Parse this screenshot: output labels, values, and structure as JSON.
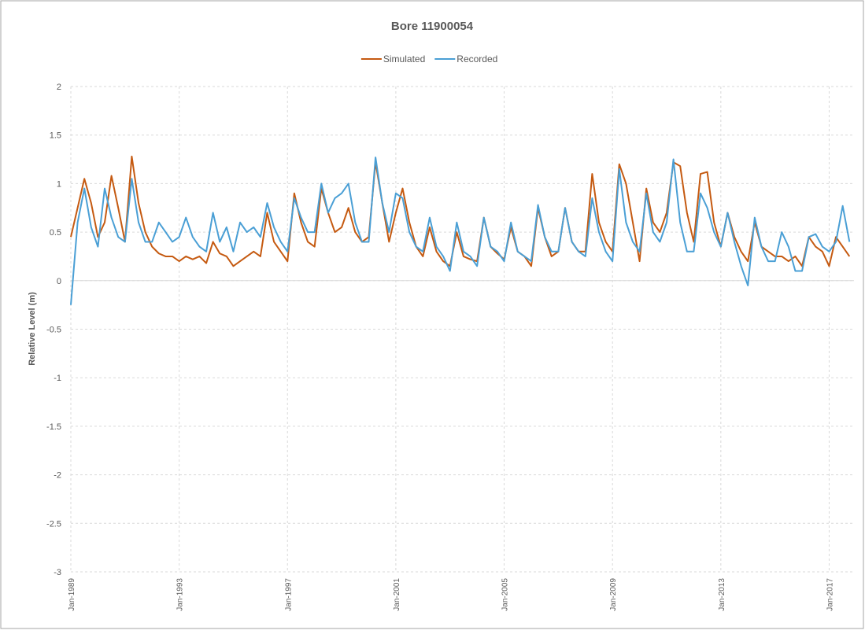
{
  "chart_data": {
    "type": "line",
    "title": "Bore 11900054",
    "y_label": "Relative Level (m)",
    "x": [
      "1989-01",
      "1989-04",
      "1989-07",
      "1989-10",
      "1990-01",
      "1990-04",
      "1990-07",
      "1990-10",
      "1991-01",
      "1991-04",
      "1991-07",
      "1991-10",
      "1992-01",
      "1992-04",
      "1992-07",
      "1992-10",
      "1993-01",
      "1993-04",
      "1993-07",
      "1993-10",
      "1994-01",
      "1994-04",
      "1994-07",
      "1994-10",
      "1995-01",
      "1995-04",
      "1995-07",
      "1995-10",
      "1996-01",
      "1996-04",
      "1996-07",
      "1996-10",
      "1997-01",
      "1997-04",
      "1997-07",
      "1997-10",
      "1998-01",
      "1998-04",
      "1998-07",
      "1998-10",
      "1999-01",
      "1999-04",
      "1999-07",
      "1999-10",
      "2000-01",
      "2000-04",
      "2000-07",
      "2000-10",
      "2001-01",
      "2001-04",
      "2001-07",
      "2001-10",
      "2002-01",
      "2002-04",
      "2002-07",
      "2002-10",
      "2003-01",
      "2003-04",
      "2003-07",
      "2003-10",
      "2004-01",
      "2004-04",
      "2004-07",
      "2004-10",
      "2005-01",
      "2005-04",
      "2005-07",
      "2005-10",
      "2006-01",
      "2006-04",
      "2006-07",
      "2006-10",
      "2007-01",
      "2007-04",
      "2007-07",
      "2007-10",
      "2008-01",
      "2008-04",
      "2008-07",
      "2008-10",
      "2009-01",
      "2009-04",
      "2009-07",
      "2009-10",
      "2010-01",
      "2010-04",
      "2010-07",
      "2010-10",
      "2011-01",
      "2011-04",
      "2011-07",
      "2011-10",
      "2012-01",
      "2012-04",
      "2012-07",
      "2012-10",
      "2013-01",
      "2013-04",
      "2013-07",
      "2013-10",
      "2014-01",
      "2014-04",
      "2014-07",
      "2014-10",
      "2015-01",
      "2015-04",
      "2015-07",
      "2015-10",
      "2016-01",
      "2016-04",
      "2016-07",
      "2016-10",
      "2017-01",
      "2017-04",
      "2017-07",
      "2017-10"
    ],
    "series": [
      {
        "name": "Simulated",
        "color": "#c55a11",
        "values": [
          0.45,
          0.75,
          1.05,
          0.8,
          0.45,
          0.6,
          1.08,
          0.75,
          0.4,
          1.28,
          0.8,
          0.5,
          0.35,
          0.28,
          0.25,
          0.25,
          0.2,
          0.25,
          0.22,
          0.25,
          0.18,
          0.4,
          0.28,
          0.25,
          0.15,
          0.2,
          0.25,
          0.3,
          0.25,
          0.7,
          0.4,
          0.3,
          0.2,
          0.9,
          0.6,
          0.4,
          0.35,
          0.95,
          0.7,
          0.5,
          0.55,
          0.75,
          0.5,
          0.4,
          0.45,
          1.22,
          0.8,
          0.4,
          0.7,
          0.95,
          0.6,
          0.35,
          0.25,
          0.55,
          0.3,
          0.2,
          0.15,
          0.5,
          0.25,
          0.22,
          0.2,
          0.65,
          0.35,
          0.28,
          0.22,
          0.55,
          0.3,
          0.25,
          0.15,
          0.75,
          0.45,
          0.25,
          0.3,
          0.75,
          0.4,
          0.3,
          0.3,
          1.1,
          0.6,
          0.4,
          0.3,
          1.2,
          1.0,
          0.6,
          0.2,
          0.95,
          0.6,
          0.5,
          0.7,
          1.22,
          1.18,
          0.7,
          0.4,
          1.1,
          1.12,
          0.6,
          0.35,
          0.7,
          0.45,
          0.3,
          0.2,
          0.6,
          0.35,
          0.3,
          0.25,
          0.25,
          0.2,
          0.25,
          0.15,
          0.45,
          0.35,
          0.3,
          0.15,
          0.45,
          0.35,
          0.25
        ]
      },
      {
        "name": "Recorded",
        "color": "#4a9fd5",
        "values": [
          -0.25,
          0.6,
          0.95,
          0.55,
          0.35,
          0.95,
          0.65,
          0.45,
          0.4,
          1.05,
          0.6,
          0.4,
          0.4,
          0.6,
          0.5,
          0.4,
          0.45,
          0.65,
          0.45,
          0.35,
          0.3,
          0.7,
          0.4,
          0.55,
          0.3,
          0.6,
          0.5,
          0.55,
          0.45,
          0.8,
          0.55,
          0.4,
          0.3,
          0.85,
          0.65,
          0.5,
          0.5,
          1.0,
          0.7,
          0.85,
          0.9,
          1.0,
          0.6,
          0.4,
          0.4,
          1.27,
          0.8,
          0.5,
          0.9,
          0.85,
          0.5,
          0.35,
          0.3,
          0.65,
          0.35,
          0.25,
          0.1,
          0.6,
          0.3,
          0.25,
          0.15,
          0.65,
          0.35,
          0.3,
          0.2,
          0.6,
          0.3,
          0.25,
          0.2,
          0.78,
          0.45,
          0.3,
          0.3,
          0.75,
          0.4,
          0.3,
          0.25,
          0.85,
          0.5,
          0.3,
          0.2,
          1.15,
          0.6,
          0.4,
          0.3,
          0.9,
          0.5,
          0.4,
          0.6,
          1.25,
          0.6,
          0.3,
          0.3,
          0.9,
          0.75,
          0.5,
          0.35,
          0.7,
          0.4,
          0.15,
          -0.05,
          0.65,
          0.35,
          0.2,
          0.2,
          0.5,
          0.35,
          0.1,
          0.1,
          0.45,
          0.48,
          0.35,
          0.3,
          0.4,
          0.77,
          0.4
        ]
      }
    ],
    "xlim": [
      "1989-01",
      "2017-12"
    ],
    "xticks": [
      {
        "value": "1989-01",
        "label": "Jan-1989"
      },
      {
        "value": "1993-01",
        "label": "Jan-1993"
      },
      {
        "value": "1997-01",
        "label": "Jan-1997"
      },
      {
        "value": "2001-01",
        "label": "Jan-2001"
      },
      {
        "value": "2005-01",
        "label": "Jan-2005"
      },
      {
        "value": "2009-01",
        "label": "Jan-2009"
      },
      {
        "value": "2013-01",
        "label": "Jan-2013"
      },
      {
        "value": "2017-01",
        "label": "Jan-2017"
      }
    ],
    "ylim": [
      -3,
      2
    ],
    "yticks": [
      -3,
      -2.5,
      -2,
      -1.5,
      -1,
      -0.5,
      0,
      0.5,
      1,
      1.5,
      2
    ],
    "grid": true,
    "legend": "top"
  }
}
